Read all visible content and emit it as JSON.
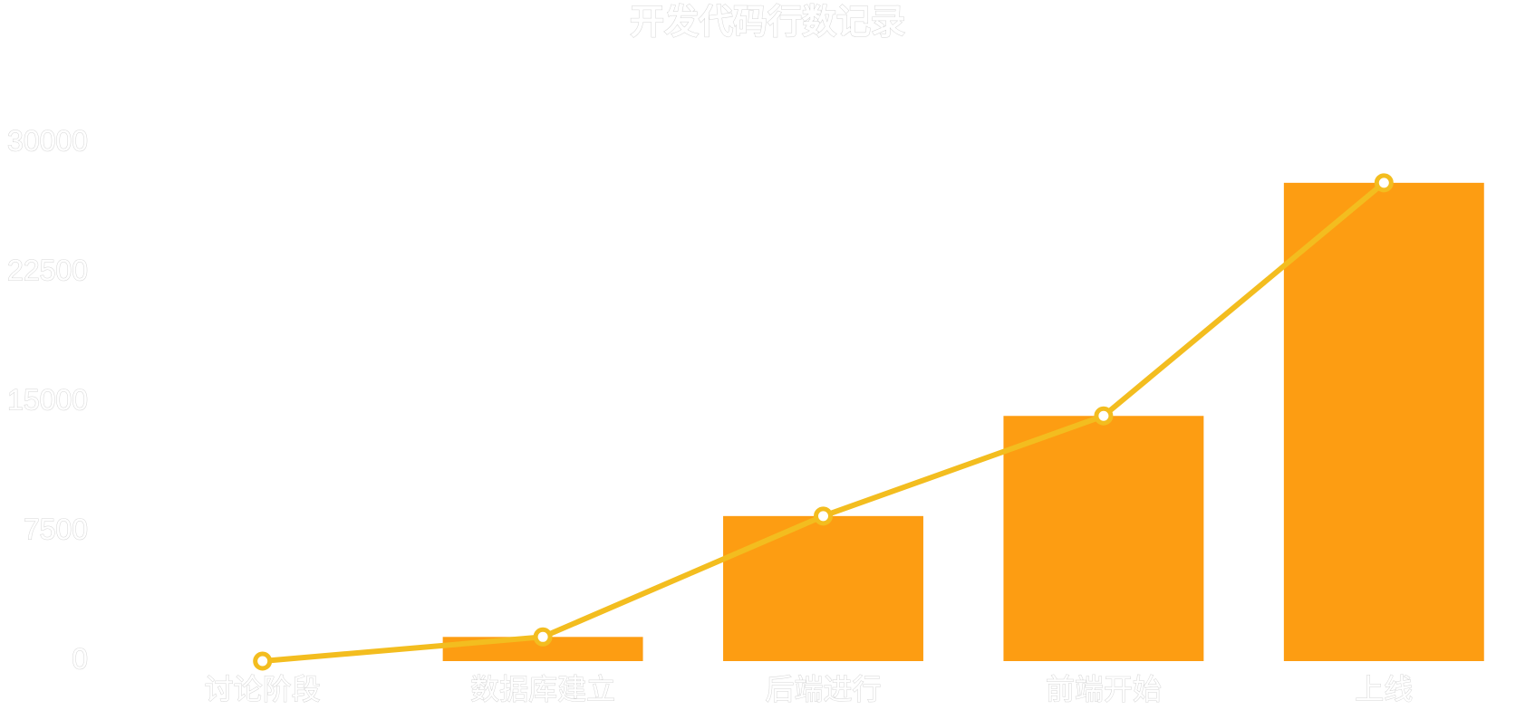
{
  "chart_data": {
    "type": "bar",
    "title": "开发代码行数记录",
    "categories": [
      "讨论阶段",
      "数据库建立",
      "后端进行",
      "前端开始",
      "上线"
    ],
    "series": [
      {
        "type": "bar",
        "values": [
          0,
          1400,
          8400,
          14200,
          27700
        ]
      },
      {
        "type": "line",
        "values": [
          0,
          1400,
          8400,
          14200,
          27700
        ]
      }
    ],
    "yticks": [
      "0",
      "7500",
      "15000",
      "22500",
      "30000"
    ],
    "ylim": [
      0,
      30000
    ],
    "grid": false,
    "colors": {
      "bar": "#fd9d12",
      "line": "#f3bd1f",
      "text_stroke": "#d4d4d4"
    }
  }
}
